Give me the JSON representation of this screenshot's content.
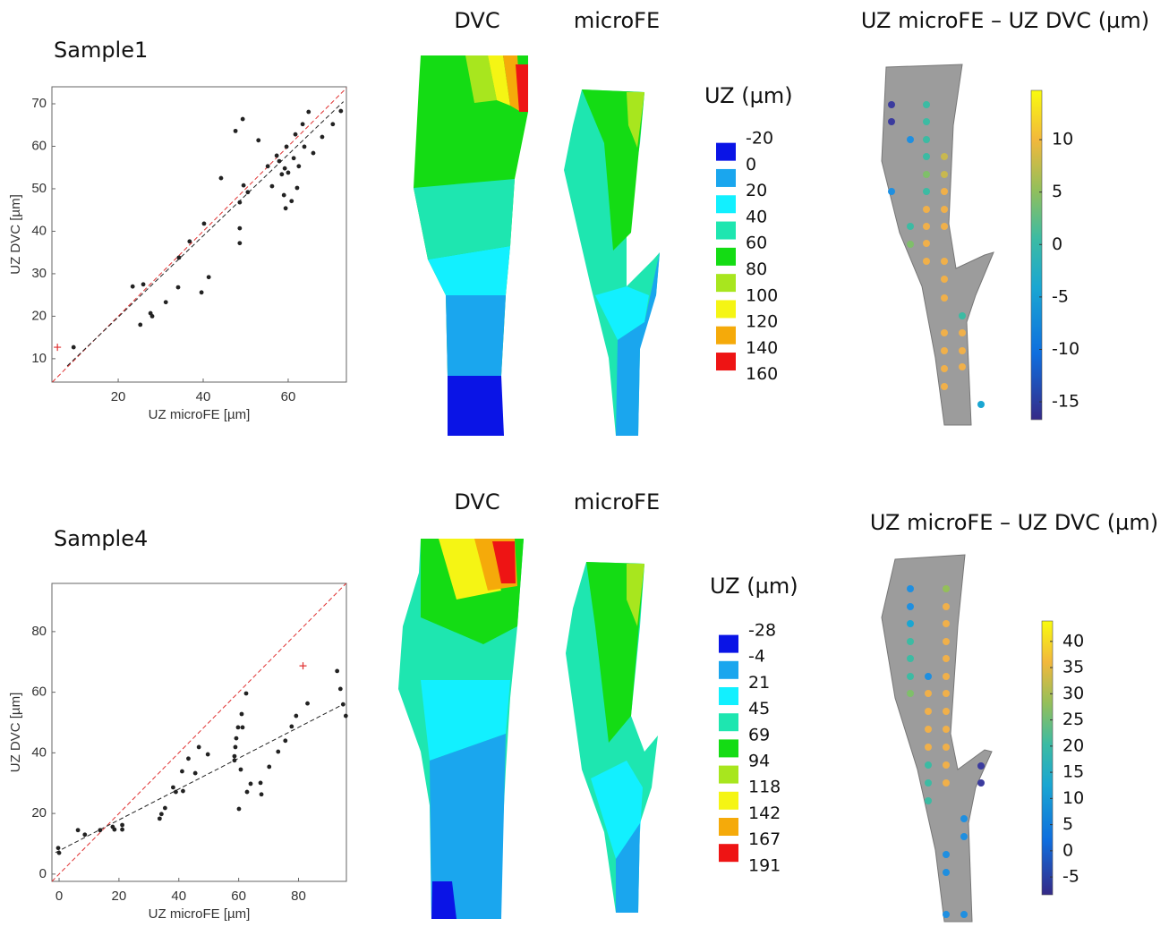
{
  "chart_data": [
    {
      "type": "scatter",
      "title": "Sample1",
      "x_label": "UZ microFE [µm]",
      "y_label": "UZ DVC [µm]",
      "xlim": [
        4.4,
        73.7
      ],
      "ylim": [
        4.5,
        74
      ],
      "xticks": [
        20,
        40,
        60
      ],
      "yticks": [
        10,
        20,
        30,
        40,
        50,
        60,
        70
      ],
      "series": [
        {
          "color": "#222222",
          "x": [
            9.5,
            23.4,
            25.9,
            25.2,
            27.6,
            28,
            31.2,
            34.1,
            34.3,
            36.8,
            39.6,
            40.2,
            41.3,
            44.2,
            47.6,
            49.3,
            48.6,
            48.6,
            48.6,
            49.5,
            50.5,
            53,
            55.2,
            56.2,
            57.3,
            57.9,
            58.5,
            59,
            59.2,
            59.4,
            59.6,
            60,
            60.8,
            61.3,
            61.7,
            62.1,
            62.5,
            63.4,
            63.8,
            64.8,
            65.9,
            68,
            70.5,
            72.4
          ],
          "values": [
            12.7,
            27,
            27.5,
            18,
            20.7,
            20,
            23.3,
            26.8,
            33.8,
            37.6,
            25.6,
            41.8,
            29.2,
            52.5,
            63.6,
            66.4,
            37.2,
            40.7,
            46.8,
            50.8,
            49.2,
            61.4,
            55.3,
            50.6,
            57.8,
            56.5,
            53.4,
            48.5,
            54.8,
            45.4,
            59.9,
            53.8,
            47.1,
            57.2,
            62.8,
            50.2,
            55.3,
            65.2,
            59.9,
            68.1,
            58.4,
            62.2,
            65.2,
            68.3
          ]
        },
        {
          "color": "#e03030",
          "x": [
            5.7
          ],
          "values": [
            12.7
          ]
        }
      ],
      "fit": {
        "color": "#222222",
        "x": [
          8,
          73
        ],
        "values": [
          8.3,
          70.5
        ]
      },
      "identity_color": "#e03030"
    },
    {
      "type": "contour",
      "labels": [
        "DVC",
        "microFE"
      ]
    },
    {
      "type": "legend",
      "title": "UZ (µm)",
      "levels": [
        -20,
        0,
        20,
        40,
        60,
        80,
        100,
        120,
        140,
        160
      ],
      "colors": [
        "#0a14e6",
        "#1aa6ee",
        "#12f0ff",
        "#1ee6b0",
        "#14dc14",
        "#a8e61e",
        "#f5f514",
        "#f5aa0a",
        "#ee1414"
      ]
    },
    {
      "type": "colorbar",
      "title": "UZ microFE – UZ DVC (µm)",
      "ylim": [
        -16.7,
        14.7
      ],
      "yticks": [
        10,
        5,
        0,
        -5,
        -10,
        -15
      ]
    },
    {
      "type": "scatter",
      "title": "Sample4",
      "x_label": "UZ microFE [µm]",
      "y_label": "UZ DVC [µm]",
      "xlim": [
        -2.4,
        96
      ],
      "ylim": [
        -2.4,
        95.9
      ],
      "xticks": [
        0,
        20,
        40,
        60,
        80
      ],
      "yticks": [
        0,
        20,
        40,
        60,
        80
      ],
      "series": [
        {
          "color": "#222222",
          "x": [
            -0.3,
            0,
            6.3,
            8.6,
            13.7,
            17.9,
            18.5,
            21.1,
            21.1,
            33.6,
            34.2,
            35.4,
            38.1,
            39,
            41.1,
            41.4,
            43.2,
            45.5,
            46.7,
            49.7,
            58.6,
            58.6,
            58.9,
            59.2,
            59.8,
            60.1,
            60.7,
            61,
            61.3,
            62.5,
            62.8,
            64,
            67.3,
            67.6,
            70.2,
            73.2,
            75.6,
            77.7,
            79.2,
            83,
            92.9,
            94,
            94.9,
            95.8
          ],
          "values": [
            8.6,
            7,
            14.5,
            13,
            14.5,
            15.6,
            14.7,
            16.2,
            14.7,
            18.3,
            19.8,
            21.8,
            28.6,
            27.1,
            33.9,
            27.4,
            38.1,
            33.3,
            41.9,
            39.5,
            37.5,
            38.9,
            41.9,
            44.8,
            48.4,
            21.5,
            34.5,
            52.8,
            48.4,
            59.6,
            27.1,
            29.8,
            30.1,
            26.3,
            35.4,
            40.4,
            44,
            48.7,
            52.2,
            56.3,
            67,
            61.1,
            56,
            52.2
          ]
        },
        {
          "color": "#e03030",
          "x": [
            81.5
          ],
          "values": [
            68.7
          ]
        }
      ],
      "fit": {
        "color": "#222222",
        "x": [
          -1.2,
          95.5
        ],
        "values": [
          7.1,
          56.3
        ]
      },
      "identity_color": "#e03030"
    },
    {
      "type": "contour",
      "labels": [
        "DVC",
        "microFE"
      ]
    },
    {
      "type": "legend",
      "title": "UZ (µm)",
      "levels": [
        -28,
        -4,
        21,
        45,
        69,
        94,
        118,
        142,
        167,
        191
      ],
      "colors": [
        "#0a14e6",
        "#1aa6ee",
        "#12f0ff",
        "#1ee6b0",
        "#14dc14",
        "#a8e61e",
        "#f5f514",
        "#f5aa0a",
        "#ee1414"
      ]
    },
    {
      "type": "colorbar",
      "title": "UZ microFE – UZ DVC (µm)",
      "ylim": [
        -8.4,
        43.9
      ],
      "yticks": [
        40,
        35,
        30,
        25,
        20,
        15,
        10,
        5,
        0,
        -5
      ]
    }
  ]
}
